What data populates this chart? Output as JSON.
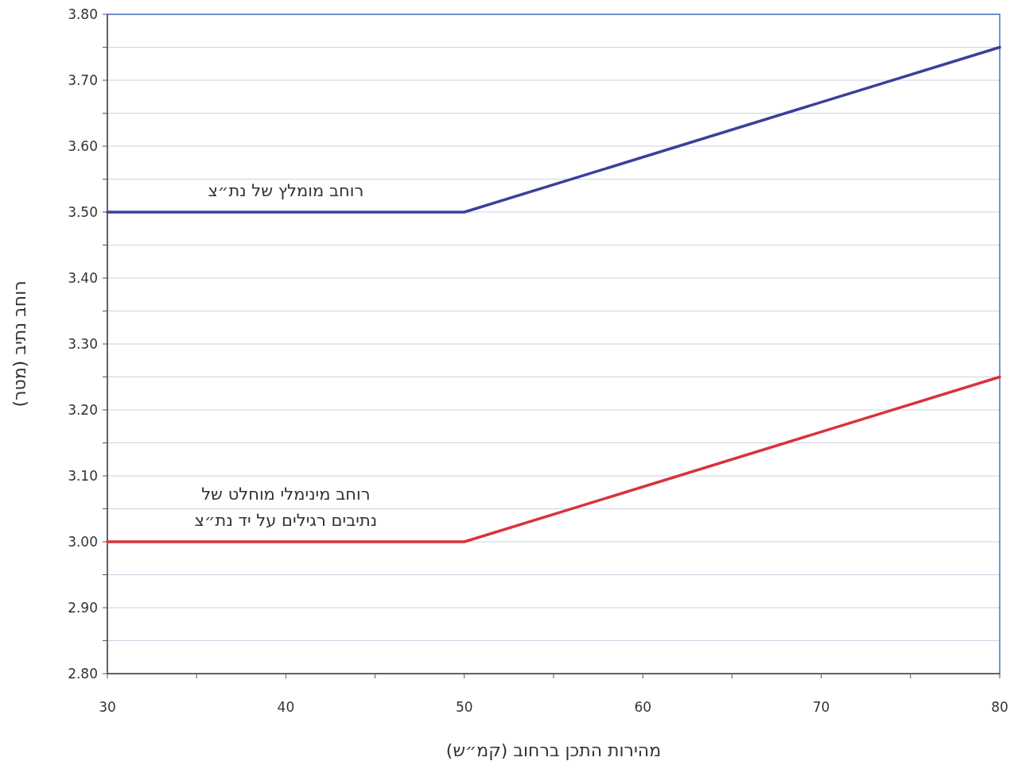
{
  "chart_data": {
    "type": "line",
    "xlabel": "מהירות התכן ברחוב (קמ״ש)",
    "ylabel": "רוחב נתיב (מטר)",
    "x": [
      30,
      50,
      80
    ],
    "series": [
      {
        "name": "רוחב מומלץ של נת״צ",
        "color": "#3b3f9c",
        "values": [
          3.5,
          3.5,
          3.75
        ]
      },
      {
        "name": "רוחב מינימלי מוחלט של\nנתיבים רגילים על יד נת״צ",
        "color": "#d8333d",
        "values": [
          3.0,
          3.0,
          3.25
        ]
      }
    ],
    "xlim": [
      30,
      80
    ],
    "xticks": [
      30,
      {
        "value": 35,
        "label": null
      },
      40,
      {
        "value": 45,
        "label": null
      },
      50,
      {
        "value": 55,
        "label": null
      },
      60,
      {
        "value": 65,
        "label": null
      },
      70,
      {
        "value": 75,
        "label": null
      },
      80
    ],
    "ylim": [
      2.8,
      3.8
    ],
    "yticks": [
      {
        "value": 2.8,
        "label": "2.80"
      },
      {
        "value": 2.85,
        "label": null
      },
      {
        "value": 2.9,
        "label": "2.90"
      },
      {
        "value": 2.95,
        "label": null
      },
      {
        "value": 3.0,
        "label": "3.00"
      },
      {
        "value": 3.05,
        "label": null
      },
      {
        "value": 3.1,
        "label": "3.10"
      },
      {
        "value": 3.15,
        "label": null
      },
      {
        "value": 3.2,
        "label": "3.20"
      },
      {
        "value": 3.25,
        "label": null
      },
      {
        "value": 3.3,
        "label": "3.30"
      },
      {
        "value": 3.35,
        "label": null
      },
      {
        "value": 3.4,
        "label": "3.40"
      },
      {
        "value": 3.45,
        "label": null
      },
      {
        "value": 3.5,
        "label": "3.50"
      },
      {
        "value": 3.55,
        "label": null
      },
      {
        "value": 3.6,
        "label": "3.60"
      },
      {
        "value": 3.65,
        "label": null
      },
      {
        "value": 3.7,
        "label": "3.70"
      },
      {
        "value": 3.75,
        "label": null
      },
      {
        "value": 3.8,
        "label": "3.80"
      }
    ],
    "grid": "y",
    "marker": "none",
    "line_style": "solid"
  }
}
